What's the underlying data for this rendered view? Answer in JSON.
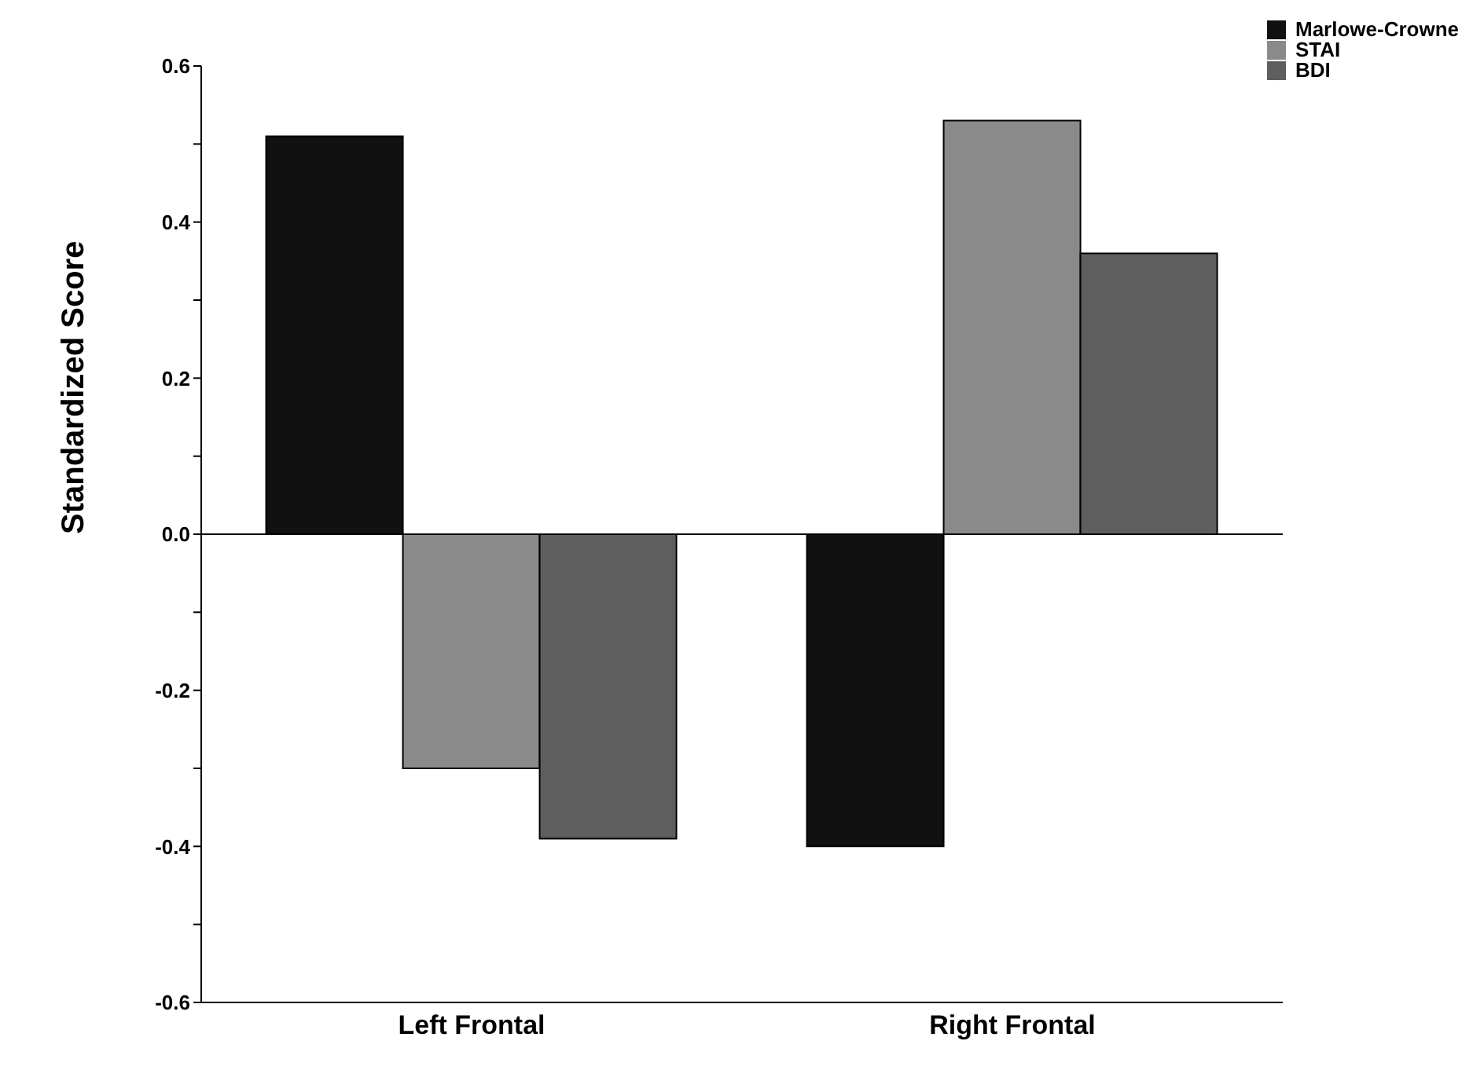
{
  "chart_data": {
    "type": "bar",
    "ylabel": "Standardized  Score",
    "categories": [
      "Left  Frontal",
      "Right  Frontal"
    ],
    "series": [
      {
        "name": "Marlowe-Crowne",
        "color": "#111111",
        "values": [
          0.51,
          -0.4
        ]
      },
      {
        "name": "STAI",
        "color": "#8a8a8a",
        "values": [
          -0.3,
          0.53
        ]
      },
      {
        "name": "BDI",
        "color": "#5e5e5e",
        "values": [
          -0.39,
          0.36
        ]
      }
    ],
    "ylim": [
      -0.6,
      0.6
    ],
    "yticks": [
      -0.6,
      {
        "value": -0.5,
        "label": null
      },
      -0.4,
      {
        "value": -0.3,
        "label": null
      },
      -0.2,
      {
        "value": -0.1,
        "label": null
      },
      {
        "value": 0,
        "label": "0.0"
      },
      {
        "value": 0.1,
        "label": null
      },
      0.2,
      {
        "value": 0.3,
        "label": null
      },
      0.4,
      {
        "value": 0.5,
        "label": null
      },
      0.6
    ],
    "ref_lines": [
      {
        "axis": "y",
        "value": 0
      }
    ],
    "grid": false,
    "legend": "top right"
  }
}
